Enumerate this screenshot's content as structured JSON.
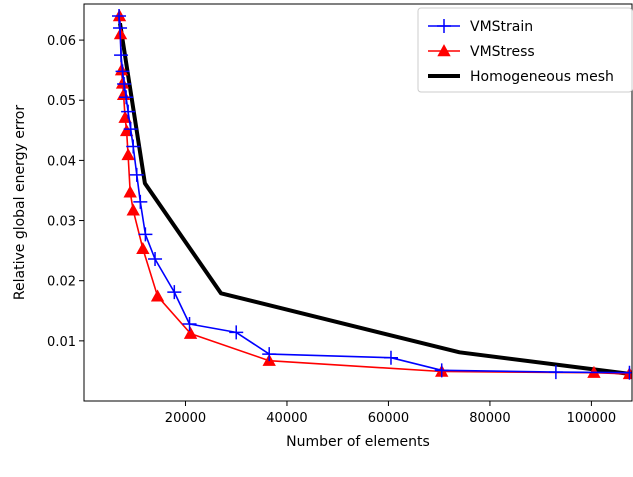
{
  "chart_data": {
    "type": "line",
    "title": "",
    "xlabel": "Number of elements",
    "ylabel": "Relative global energy error",
    "xlim": [
      0,
      108000
    ],
    "ylim": [
      0.0,
      0.066
    ],
    "xticks": [
      20000,
      40000,
      60000,
      80000,
      100000
    ],
    "xtick_labels": [
      "20000",
      "40000",
      "60000",
      "80000",
      "100000"
    ],
    "yticks": [
      0.01,
      0.02,
      0.03,
      0.04,
      0.05,
      0.06
    ],
    "ytick_labels": [
      "0.01",
      "0.02",
      "0.03",
      "0.04",
      "0.05",
      "0.06"
    ],
    "grid": false,
    "legend_position": "top-right",
    "series": [
      {
        "name": "VMStrain",
        "color": "#0000ff",
        "marker": "plus",
        "x": [
          6900,
          7100,
          7300,
          7600,
          7900,
          8300,
          8700,
          9200,
          9700,
          10400,
          11100,
          12100,
          14000,
          17800,
          20800,
          30000,
          36500,
          60500,
          70500,
          93000,
          107500
        ],
        "y": [
          0.064,
          0.062,
          0.0575,
          0.0548,
          0.0527,
          0.0505,
          0.0481,
          0.0452,
          0.0423,
          0.0376,
          0.0331,
          0.0277,
          0.0236,
          0.0181,
          0.0128,
          0.0114,
          0.0078,
          0.0072,
          0.0051,
          0.0048,
          0.0047
        ]
      },
      {
        "name": "VMStress",
        "color": "#ff0000",
        "marker": "triangle",
        "x": [
          7000,
          7200,
          7400,
          7600,
          7800,
          8100,
          8400,
          8700,
          9100,
          9700,
          11600,
          14500,
          21000,
          36500,
          70500,
          100500,
          107500
        ],
        "y": [
          0.064,
          0.061,
          0.055,
          0.0528,
          0.0509,
          0.0471,
          0.0449,
          0.0409,
          0.0347,
          0.0317,
          0.0253,
          0.0174,
          0.0112,
          0.0067,
          0.0049,
          0.0047,
          0.0045
        ]
      },
      {
        "name": "Homogeneous mesh",
        "color": "#000000",
        "marker": "none",
        "x": [
          7100,
          12000,
          27000,
          74000,
          107500
        ],
        "y": [
          0.0628,
          0.0362,
          0.0179,
          0.0081,
          0.0045
        ]
      }
    ]
  }
}
